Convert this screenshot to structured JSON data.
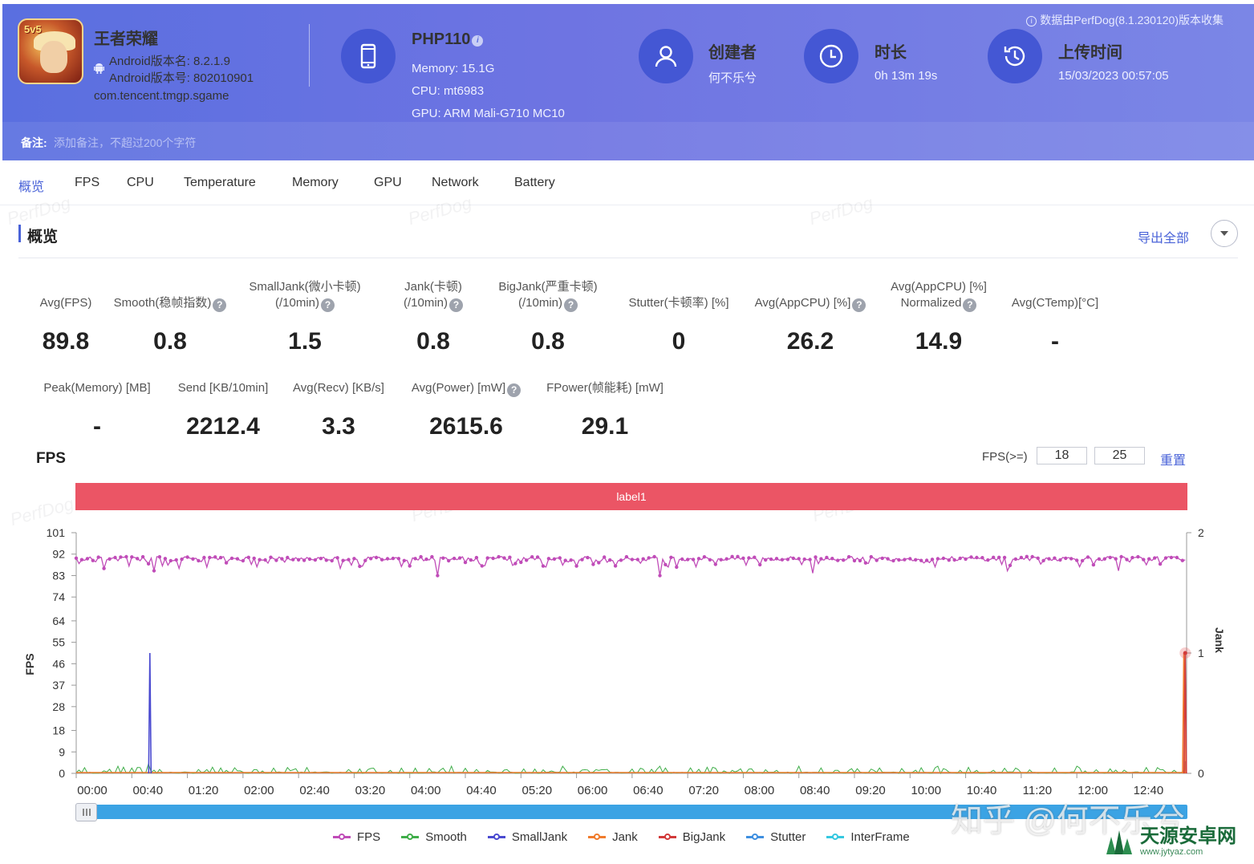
{
  "header": {
    "notice": "数据由PerfDog(8.1.230120)版本收集",
    "app": {
      "name": "王者荣耀",
      "badge": "5v5",
      "version_name": "Android版本名: 8.2.1.9",
      "version_code": "Android版本号: 802010901",
      "package": "com.tencent.tmgp.sgame"
    },
    "device": {
      "name": "PHP110",
      "memory": "Memory: 15.1G",
      "cpu": "CPU: mt6983",
      "gpu": "GPU: ARM Mali-G710 MC10"
    },
    "creator": {
      "title": "创建者",
      "value": "何不乐兮"
    },
    "duration": {
      "title": "时长",
      "value": "0h 13m 19s"
    },
    "upload": {
      "title": "上传时间",
      "value": "15/03/2023 00:57:05"
    },
    "remark": {
      "label": "备注:",
      "placeholder": "添加备注，不超过200个字符"
    }
  },
  "tabs": [
    "概览",
    "FPS",
    "CPU",
    "Temperature",
    "Memory",
    "GPU",
    "Network",
    "Battery"
  ],
  "overview": {
    "title": "概览",
    "export_label": "导出全部",
    "metrics_row1": [
      {
        "label": [
          "Avg(FPS)"
        ],
        "value": "89.8",
        "help": false
      },
      {
        "label": [
          "Smooth(稳帧指数)"
        ],
        "value": "0.8",
        "help": true
      },
      {
        "label": [
          "SmallJank(微小卡顿)",
          "(/10min)"
        ],
        "value": "1.5",
        "help": true
      },
      {
        "label": [
          "Jank(卡顿)",
          "(/10min)"
        ],
        "value": "0.8",
        "help": true
      },
      {
        "label": [
          "BigJank(严重卡顿)",
          "(/10min)"
        ],
        "value": "0.8",
        "help": true
      },
      {
        "label": [
          "Stutter(卡顿率) [%]"
        ],
        "value": "0",
        "help": false
      },
      {
        "label": [
          "Avg(AppCPU) [%]"
        ],
        "value": "26.2",
        "help": true
      },
      {
        "label": [
          "Avg(AppCPU) [%]",
          "Normalized"
        ],
        "value": "14.9",
        "help": true
      },
      {
        "label": [
          "Avg(CTemp)[°C]"
        ],
        "value": "-",
        "help": false
      }
    ],
    "metrics_row2": [
      {
        "label": [
          "Peak(Memory) [MB]"
        ],
        "value": "-",
        "help": false
      },
      {
        "label": [
          "Send [KB/10min]"
        ],
        "value": "2212.4",
        "help": false
      },
      {
        "label": [
          "Avg(Recv) [KB/s]"
        ],
        "value": "3.3",
        "help": false
      },
      {
        "label": [
          "Avg(Power) [mW]"
        ],
        "value": "2615.6",
        "help": true
      },
      {
        "label": [
          "FPower(帧能耗) [mW]"
        ],
        "value": "29.1",
        "help": false
      }
    ]
  },
  "fps_section": {
    "title": "FPS",
    "threshold_label": "FPS(>=)",
    "threshold_1": "18",
    "threshold_2": "25",
    "reset_label": "重置",
    "band_label": "label1"
  },
  "watermarks": {
    "brand": "PerfDog",
    "zhihu": "知乎 @何不乐兮",
    "site_cn": "天源安卓网",
    "site_en": "www.jytyaz.com"
  },
  "colors": {
    "fps": "#c04cb8",
    "smooth": "#3fae49",
    "smalljank": "#4a4ad0",
    "jank": "#f07b2c",
    "bigjank": "#d23a3a",
    "stutter": "#3e8fe0",
    "interframe": "#35c8e0"
  },
  "chart_data": {
    "type": "line",
    "xlabel": "",
    "ylabel": "FPS",
    "y2label": "Jank",
    "x_ticks": [
      "00:00",
      "00:40",
      "01:20",
      "02:00",
      "02:40",
      "03:20",
      "04:00",
      "04:40",
      "05:20",
      "06:00",
      "06:40",
      "07:20",
      "08:00",
      "08:40",
      "09:20",
      "10:00",
      "10:40",
      "11:20",
      "12:00",
      "12:40"
    ],
    "xlim_seconds": [
      0,
      799
    ],
    "y_ticks": [
      0,
      9,
      18,
      28,
      37,
      46,
      55,
      64,
      74,
      83,
      92,
      101
    ],
    "ylim": [
      0,
      101
    ],
    "y2_ticks": [
      0,
      1,
      2
    ],
    "y2lim": [
      0,
      2
    ],
    "series": [
      {
        "name": "FPS",
        "axis": "left",
        "typical": 90,
        "dips": [
          [
            20,
            86
          ],
          [
            38,
            87
          ],
          [
            56,
            85
          ],
          [
            74,
            86
          ],
          [
            95,
            87
          ],
          [
            155,
            82
          ],
          [
            157,
            81
          ],
          [
            190,
            86
          ],
          [
            260,
            83
          ],
          [
            285,
            83
          ],
          [
            345,
            81
          ],
          [
            420,
            83
          ],
          [
            530,
            84
          ],
          [
            575,
            86
          ],
          [
            670,
            85
          ],
          [
            750,
            85
          ],
          [
            797,
            67
          ]
        ]
      },
      {
        "name": "Smooth",
        "axis": "left",
        "typical": 1,
        "peaks": [
          [
            30,
            3
          ],
          [
            52,
            4
          ],
          [
            155,
            4
          ],
          [
            270,
            3
          ],
          [
            350,
            3
          ],
          [
            420,
            3
          ],
          [
            520,
            3
          ],
          [
            620,
            3
          ],
          [
            720,
            3
          ]
        ]
      },
      {
        "name": "SmallJank",
        "axis": "right",
        "spikes": [
          [
            53,
            1.0
          ],
          [
            798,
            0.1
          ]
        ]
      },
      {
        "name": "Jank",
        "axis": "right",
        "spikes": [
          [
            797,
            1.0
          ]
        ]
      },
      {
        "name": "BigJank",
        "axis": "right",
        "spikes": [
          [
            798,
            1.0
          ]
        ]
      },
      {
        "name": "Stutter",
        "axis": "right",
        "spikes": []
      },
      {
        "name": "InterFrame",
        "axis": "right",
        "spikes": []
      }
    ],
    "legend": [
      "FPS",
      "Smooth",
      "SmallJank",
      "Jank",
      "BigJank",
      "Stutter",
      "InterFrame"
    ],
    "legend_position": "bottom"
  }
}
